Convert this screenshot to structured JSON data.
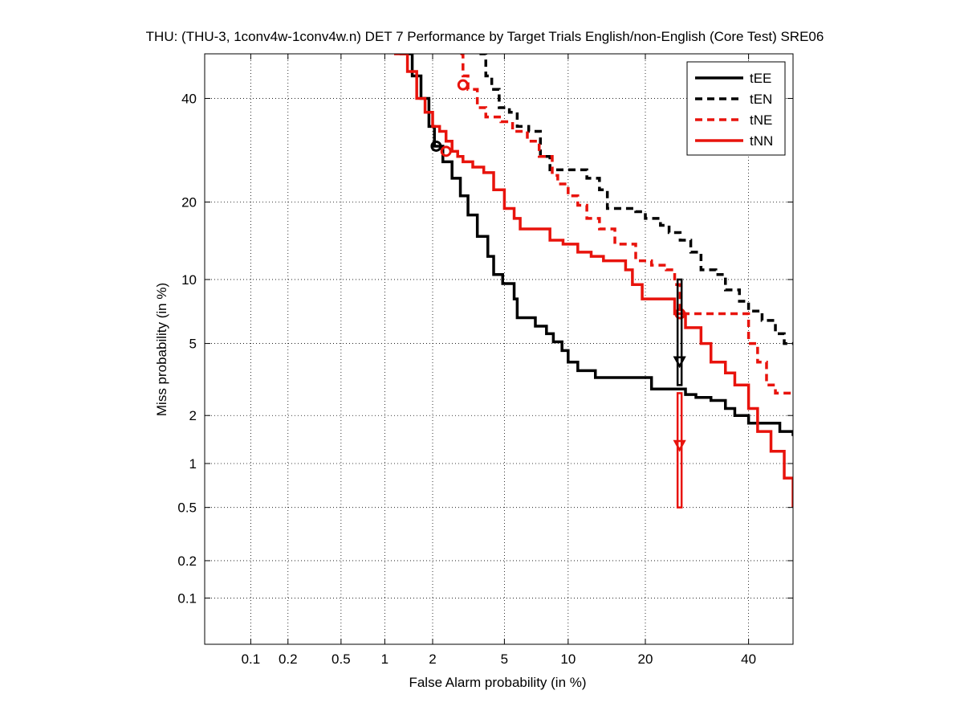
{
  "chart_data": {
    "type": "line",
    "title": "THU: (THU-3, 1conv4w-1conv4w.n) DET 7 Performance by Target Trials English/non-English (Core Test) SRE06",
    "xlabel": "False Alarm probability (in %)",
    "ylabel": "Miss probability (in %)",
    "x_scale": "probit",
    "y_scale": "probit",
    "xlim": [
      0.04,
      50
    ],
    "ylim": [
      0.04,
      50
    ],
    "x_ticks": [
      0.1,
      0.2,
      0.5,
      1,
      2,
      5,
      10,
      20,
      40
    ],
    "x_tick_labels": [
      "0.1",
      "0.2",
      "0.5",
      "1",
      "2",
      "5",
      "10",
      "20",
      "40"
    ],
    "y_ticks": [
      0.1,
      0.2,
      0.5,
      1,
      2,
      5,
      10,
      20,
      40
    ],
    "y_tick_labels": [
      "0.1",
      "0.2",
      "0.5",
      "1",
      "2",
      "5",
      "10",
      "20",
      "40"
    ],
    "grid": true,
    "legend_position": "top-right",
    "series": [
      {
        "name": "tEE",
        "color": "#000000",
        "dash": "solid",
        "points": [
          [
            1.25,
            50
          ],
          [
            1.5,
            45
          ],
          [
            1.7,
            40
          ],
          [
            1.9,
            34
          ],
          [
            2.05,
            30
          ],
          [
            2.3,
            27
          ],
          [
            2.6,
            24
          ],
          [
            2.9,
            21
          ],
          [
            3.2,
            18
          ],
          [
            3.6,
            15
          ],
          [
            4.1,
            12.5
          ],
          [
            4.4,
            10.5
          ],
          [
            4.9,
            9.6
          ],
          [
            5.3,
            9.6
          ],
          [
            5.6,
            8.2
          ],
          [
            5.8,
            6.7
          ],
          [
            6.4,
            6.7
          ],
          [
            7.1,
            6.1
          ],
          [
            8.0,
            5.6
          ],
          [
            8.6,
            5.1
          ],
          [
            9.4,
            4.6
          ],
          [
            10.0,
            4.0
          ],
          [
            11.0,
            3.6
          ],
          [
            12.0,
            3.6
          ],
          [
            13.0,
            3.3
          ],
          [
            20.0,
            3.3
          ],
          [
            21.0,
            2.85
          ],
          [
            25.0,
            2.85
          ],
          [
            27.0,
            2.65
          ],
          [
            29.0,
            2.55
          ],
          [
            32.0,
            2.45
          ],
          [
            35.0,
            2.2
          ],
          [
            37.0,
            2.0
          ],
          [
            40.0,
            1.8
          ],
          [
            45.0,
            1.8
          ],
          [
            47.0,
            1.6
          ],
          [
            50.0,
            1.5
          ]
        ]
      },
      {
        "name": "tEN",
        "color": "#000000",
        "dash": "dashed",
        "points": [
          [
            3.7,
            50
          ],
          [
            4.0,
            45
          ],
          [
            4.3,
            42
          ],
          [
            4.7,
            38
          ],
          [
            5.3,
            37
          ],
          [
            5.8,
            34
          ],
          [
            6.6,
            33
          ],
          [
            7.5,
            28
          ],
          [
            8.3,
            25.5
          ],
          [
            10.0,
            25.5
          ],
          [
            12.0,
            24
          ],
          [
            13.5,
            22
          ],
          [
            14.5,
            19
          ],
          [
            18.5,
            18.5
          ],
          [
            20.0,
            17.5
          ],
          [
            22.5,
            16.5
          ],
          [
            24.0,
            15.5
          ],
          [
            26.0,
            14.5
          ],
          [
            28.0,
            13
          ],
          [
            30.0,
            11
          ],
          [
            33.0,
            10.5
          ],
          [
            35.0,
            9
          ],
          [
            38.0,
            8
          ],
          [
            40.0,
            7.2
          ],
          [
            43.0,
            6.5
          ],
          [
            46.0,
            5.6
          ],
          [
            48.0,
            5.0
          ],
          [
            50.0,
            5.0
          ]
        ]
      },
      {
        "name": "tNE",
        "color": "#e8130c",
        "dash": "dashed",
        "points": [
          [
            2.9,
            50
          ],
          [
            3.0,
            45
          ],
          [
            3.2,
            42
          ],
          [
            3.6,
            38
          ],
          [
            4.0,
            36
          ],
          [
            4.8,
            35
          ],
          [
            5.5,
            33
          ],
          [
            6.5,
            31
          ],
          [
            7.4,
            28
          ],
          [
            8.5,
            24.5
          ],
          [
            9.0,
            23
          ],
          [
            10.0,
            21
          ],
          [
            11.0,
            19.5
          ],
          [
            12.0,
            17.5
          ],
          [
            13.5,
            16
          ],
          [
            15.5,
            14
          ],
          [
            17.5,
            14
          ],
          [
            18.5,
            12
          ],
          [
            21.0,
            11.5
          ],
          [
            23.5,
            11
          ],
          [
            25.0,
            9.5
          ],
          [
            26.0,
            7.0
          ],
          [
            38.0,
            7.0
          ],
          [
            40.0,
            5.0
          ],
          [
            42.0,
            4.0
          ],
          [
            44.0,
            3.0
          ],
          [
            46.0,
            2.7
          ],
          [
            50.0,
            2.7
          ]
        ]
      },
      {
        "name": "tNN",
        "color": "#e8130c",
        "dash": "solid",
        "points": [
          [
            1.15,
            50
          ],
          [
            1.4,
            46
          ],
          [
            1.6,
            40
          ],
          [
            1.8,
            37
          ],
          [
            2.0,
            34
          ],
          [
            2.2,
            33
          ],
          [
            2.4,
            31
          ],
          [
            2.6,
            29
          ],
          [
            2.8,
            28
          ],
          [
            3.0,
            27
          ],
          [
            3.4,
            26
          ],
          [
            3.9,
            25
          ],
          [
            4.4,
            22
          ],
          [
            5.0,
            19
          ],
          [
            5.6,
            17.5
          ],
          [
            6.0,
            16
          ],
          [
            7.4,
            16
          ],
          [
            8.3,
            14.5
          ],
          [
            9.5,
            14
          ],
          [
            11.0,
            13
          ],
          [
            12.5,
            12.5
          ],
          [
            14.0,
            12
          ],
          [
            17.0,
            11
          ],
          [
            18.0,
            9.5
          ],
          [
            19.5,
            8.2
          ],
          [
            22.0,
            8.2
          ],
          [
            25.0,
            7.0
          ],
          [
            27.0,
            6.0
          ],
          [
            30.0,
            5.0
          ],
          [
            32.0,
            4.0
          ],
          [
            35.0,
            3.5
          ],
          [
            37.0,
            3.0
          ],
          [
            40.0,
            2.2
          ],
          [
            42.0,
            1.6
          ],
          [
            45.0,
            1.2
          ],
          [
            48.0,
            0.8
          ],
          [
            50.0,
            0.5
          ]
        ]
      }
    ],
    "markers": [
      {
        "series": "tEE",
        "kind": "circle",
        "x": 2.1,
        "y": 30.0
      },
      {
        "series": "tNN",
        "kind": "circle",
        "x": 2.4,
        "y": 29.0
      },
      {
        "series": "tNE",
        "kind": "circle",
        "x": 3.0,
        "y": 43.0
      },
      {
        "series": "tNE",
        "kind": "circle",
        "x": 26.0,
        "y": 7.0
      },
      {
        "series": "tEN",
        "kind": "interval",
        "x": 25.9,
        "y": 4.0,
        "y_low": 3.0,
        "y_high": 10.0
      },
      {
        "series": "tNN",
        "kind": "interval",
        "x": 25.9,
        "y": 1.3,
        "y_low": 0.5,
        "y_high": 2.7
      }
    ]
  }
}
